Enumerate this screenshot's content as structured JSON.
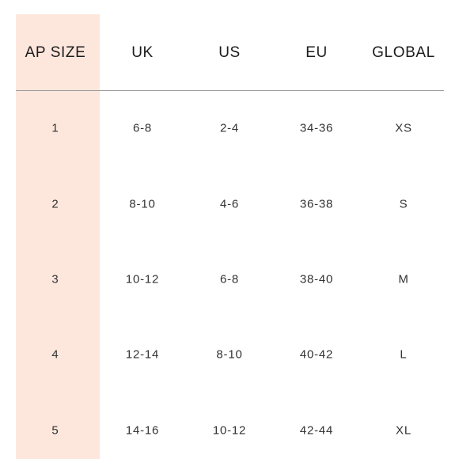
{
  "table": {
    "headers": [
      "AP SIZE",
      "UK",
      "US",
      "EU",
      "GLOBAL"
    ],
    "rows": [
      [
        "1",
        "6-8",
        "2-4",
        "34-36",
        "XS"
      ],
      [
        "2",
        "8-10",
        "4-6",
        "36-38",
        "S"
      ],
      [
        "3",
        "10-12",
        "6-8",
        "38-40",
        "M"
      ],
      [
        "4",
        "12-14",
        "8-10",
        "40-42",
        "L"
      ],
      [
        "5",
        "14-16",
        "10-12",
        "42-44",
        "XL"
      ]
    ]
  },
  "colors": {
    "highlight": "#fde7dd",
    "divider": "#9a9a9a",
    "text": "#222222"
  }
}
